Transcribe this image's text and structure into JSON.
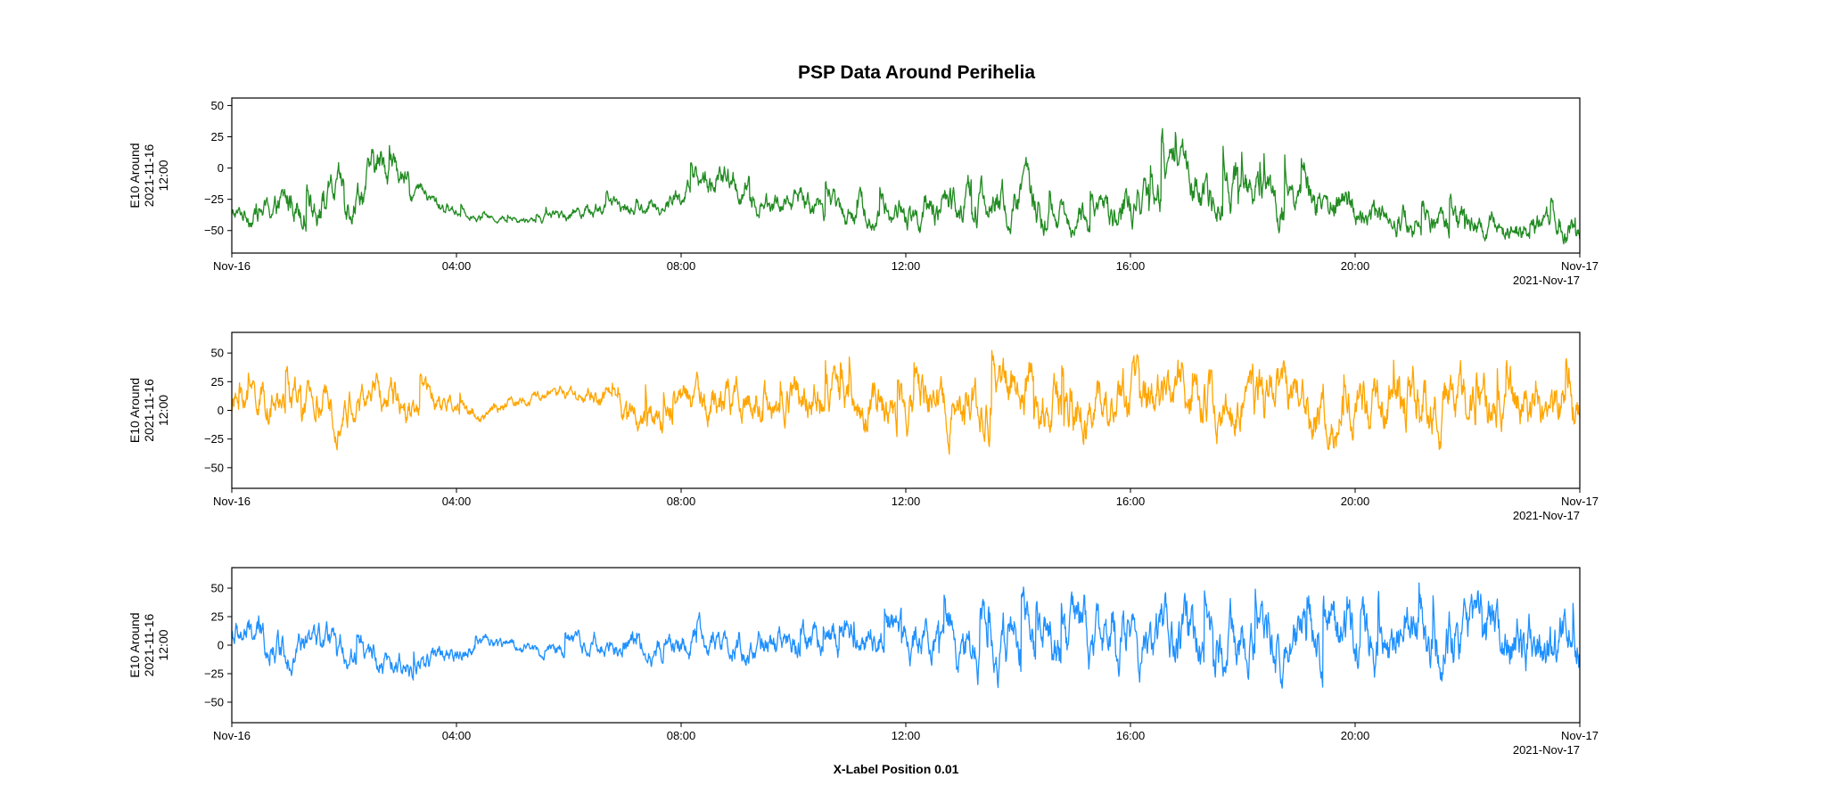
{
  "chart_data": {
    "type": "line",
    "title": "PSP Data Around Perihelia",
    "xlabel": "X-Label Position 0.01",
    "date_label": "2021-Nov-17",
    "x_range": [
      "2021-11-16T00:00",
      "2021-11-17T00:00"
    ],
    "x_tick_labels": [
      "Nov-16",
      "04:00",
      "08:00",
      "12:00",
      "16:00",
      "20:00",
      "Nov-17"
    ],
    "x_tick_hours": [
      0,
      4,
      8,
      12,
      16,
      20,
      24
    ],
    "grid": false,
    "legend": "none",
    "panels": [
      {
        "ylabel": [
          "E10 Around",
          "2021-11-16",
          "12:00"
        ],
        "ylim": [
          -68,
          56
        ],
        "y_ticks": [
          -50,
          -25,
          0,
          25,
          50
        ],
        "y_tick_labels": [
          "−50",
          "−25",
          "0",
          "25",
          "50"
        ],
        "color": "#228b22",
        "series": [
          {
            "hour": [
              0,
              0.5,
              1,
              1.5,
              2,
              2.3,
              2.7,
              3,
              3.5,
              4,
              4.5,
              5,
              5.5,
              6,
              6.5,
              7,
              7.5,
              8,
              8.3,
              8.7,
              9,
              9.5,
              10,
              10.5,
              11,
              11.5,
              12,
              12.5,
              13,
              13.5,
              14,
              14.5,
              15,
              15.5,
              16,
              16.5,
              16.8,
              17,
              17.5,
              18,
              18.5,
              19,
              19.5,
              20,
              20.5,
              21,
              21.5,
              22,
              22.5,
              23,
              23.5,
              24
            ],
            "base": [
              -38,
              -35,
              -28,
              -25,
              -22,
              -10,
              5,
              -12,
              -28,
              -35,
              -40,
              -42,
              -40,
              -35,
              -30,
              -33,
              -32,
              -22,
              -12,
              -10,
              -18,
              -30,
              -28,
              -30,
              -35,
              -38,
              -35,
              -35,
              -20,
              -30,
              -25,
              -40,
              -40,
              -38,
              -30,
              -15,
              -5,
              -20,
              -20,
              -15,
              -22,
              -15,
              -30,
              -35,
              -40,
              -40,
              -45,
              -42,
              -48,
              -45,
              -45,
              -48
            ],
            "amp": [
              12,
              18,
              25,
              28,
              30,
              30,
              28,
              20,
              12,
              8,
              5,
              5,
              7,
              10,
              12,
              10,
              10,
              18,
              22,
              22,
              22,
              18,
              18,
              20,
              22,
              20,
              22,
              25,
              30,
              28,
              32,
              25,
              20,
              22,
              30,
              35,
              35,
              32,
              32,
              35,
              32,
              32,
              28,
              25,
              22,
              22,
              20,
              22,
              18,
              20,
              20,
              22
            ]
          }
        ]
      },
      {
        "ylabel": [
          "E10 Around",
          "2021-11-16",
          "12:00"
        ],
        "ylim": [
          -68,
          68
        ],
        "y_ticks": [
          -50,
          -25,
          0,
          25,
          50
        ],
        "y_tick_labels": [
          "−50",
          "−25",
          "0",
          "25",
          "50"
        ],
        "color": "#ffa500",
        "series": [
          {
            "hour": [
              0,
              0.5,
              1,
              1.5,
              2,
              2.5,
              3,
              3.5,
              4,
              4.5,
              5,
              5.5,
              6,
              6.5,
              7,
              7.5,
              8,
              8.5,
              9,
              9.5,
              10,
              10.5,
              11,
              11.5,
              12,
              12.5,
              13,
              13.5,
              14,
              14.5,
              15,
              15.5,
              16,
              16.5,
              17,
              17.5,
              18,
              18.5,
              19,
              19.5,
              20,
              20.5,
              21,
              21.5,
              22,
              22.5,
              23,
              23.5,
              24
            ],
            "base": [
              5,
              8,
              5,
              0,
              5,
              10,
              10,
              5,
              0,
              -5,
              10,
              12,
              15,
              10,
              0,
              -5,
              5,
              10,
              5,
              0,
              10,
              15,
              5,
              0,
              -5,
              5,
              10,
              5,
              15,
              10,
              5,
              0,
              10,
              5,
              15,
              10,
              0,
              10,
              5,
              0,
              10,
              5,
              10,
              5,
              5,
              10,
              15,
              10,
              5
            ],
            "amp": [
              30,
              30,
              32,
              32,
              30,
              28,
              28,
              22,
              18,
              12,
              10,
              10,
              12,
              18,
              22,
              25,
              28,
              30,
              30,
              32,
              35,
              38,
              40,
              40,
              40,
              40,
              42,
              42,
              45,
              45,
              45,
              45,
              45,
              45,
              45,
              45,
              45,
              45,
              45,
              45,
              45,
              45,
              45,
              45,
              45,
              45,
              45,
              45,
              45
            ]
          }
        ]
      },
      {
        "ylabel": [
          "E10 Around",
          "2021-11-16",
          "12:00"
        ],
        "ylim": [
          -68,
          68
        ],
        "y_ticks": [
          -50,
          -25,
          0,
          25,
          50
        ],
        "y_tick_labels": [
          "−50",
          "−25",
          "0",
          "25",
          "50"
        ],
        "color": "#1e90ff",
        "series": [
          {
            "hour": [
              0,
              0.5,
              1,
              1.5,
              2,
              2.5,
              3,
              3.5,
              4,
              4.5,
              5,
              5.5,
              6,
              6.5,
              7,
              7.5,
              8,
              8.5,
              9,
              9.5,
              10,
              10.5,
              11,
              11.5,
              12,
              12.5,
              13,
              13.5,
              14,
              14.5,
              15,
              15.5,
              16,
              16.5,
              17,
              17.5,
              18,
              18.5,
              19,
              19.5,
              20,
              20.5,
              21,
              21.5,
              22,
              22.5,
              23,
              23.5,
              24
            ],
            "base": [
              10,
              5,
              0,
              0,
              -5,
              -15,
              -20,
              -15,
              -5,
              5,
              0,
              -5,
              0,
              5,
              0,
              -5,
              0,
              5,
              0,
              -5,
              0,
              5,
              10,
              15,
              10,
              5,
              0,
              -5,
              0,
              5,
              0,
              -5,
              0,
              5,
              0,
              -5,
              0,
              5,
              0,
              5,
              0,
              -5,
              0,
              10,
              5,
              0,
              5,
              10,
              5
            ],
            "amp": [
              25,
              28,
              28,
              25,
              22,
              22,
              20,
              18,
              15,
              12,
              10,
              12,
              15,
              18,
              20,
              20,
              22,
              22,
              25,
              25,
              25,
              28,
              30,
              30,
              32,
              35,
              40,
              45,
              48,
              48,
              48,
              48,
              48,
              48,
              48,
              48,
              48,
              48,
              48,
              48,
              48,
              48,
              48,
              48,
              48,
              48,
              48,
              48,
              48
            ]
          }
        ]
      }
    ]
  }
}
